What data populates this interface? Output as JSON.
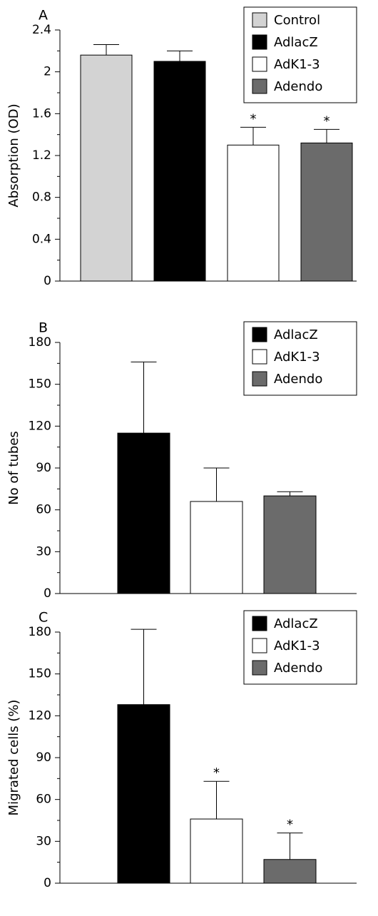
{
  "colors": {
    "Control": "#d3d3d3",
    "AdlacZ": "#000000",
    "AdK1-3": "#ffffff",
    "Adendo": "#6b6b6b"
  },
  "chart_data": [
    {
      "type": "bar",
      "panel_label": "A",
      "ylabel": "Absorption (OD)",
      "xlabel": "",
      "ylim": [
        0,
        2.4
      ],
      "yticks": [
        0,
        0.4,
        0.8,
        1.2,
        1.6,
        2,
        2.4
      ],
      "ytick_labels": [
        "0",
        "0.4",
        "0.8",
        "1.2",
        "1.6",
        "2",
        "2.4"
      ],
      "legend_position": "top-right",
      "categories": [
        "Control",
        "AdlacZ",
        "AdK1-3",
        "Adendo"
      ],
      "values": [
        2.16,
        2.1,
        1.3,
        1.32
      ],
      "errors": [
        0.1,
        0.1,
        0.17,
        0.13
      ],
      "significant": [
        false,
        false,
        true,
        true
      ],
      "significance_marker": "*"
    },
    {
      "type": "bar",
      "panel_label": "B",
      "ylabel": "No of tubes",
      "xlabel": "",
      "ylim": [
        0,
        180
      ],
      "yticks": [
        0,
        30,
        60,
        90,
        120,
        150,
        180
      ],
      "ytick_labels": [
        "0",
        "30",
        "60",
        "90",
        "120",
        "150",
        "180"
      ],
      "legend_position": "top-right",
      "categories": [
        "AdlacZ",
        "AdK1-3",
        "Adendo"
      ],
      "values": [
        115,
        66,
        70
      ],
      "errors": [
        51,
        24,
        3
      ],
      "significant": [
        false,
        false,
        false
      ],
      "significance_marker": "*"
    },
    {
      "type": "bar",
      "panel_label": "C",
      "ylabel": "Migrated cells (%)",
      "xlabel": "",
      "ylim": [
        0,
        180
      ],
      "yticks": [
        0,
        30,
        60,
        90,
        120,
        150,
        180
      ],
      "ytick_labels": [
        "0",
        "30",
        "60",
        "90",
        "120",
        "150",
        "180"
      ],
      "legend_position": "top-right",
      "categories": [
        "AdlacZ",
        "AdK1-3",
        "Adendo"
      ],
      "values": [
        128,
        46,
        17
      ],
      "errors": [
        54,
        27,
        19
      ],
      "significant": [
        false,
        true,
        true
      ],
      "significance_marker": "*"
    }
  ]
}
